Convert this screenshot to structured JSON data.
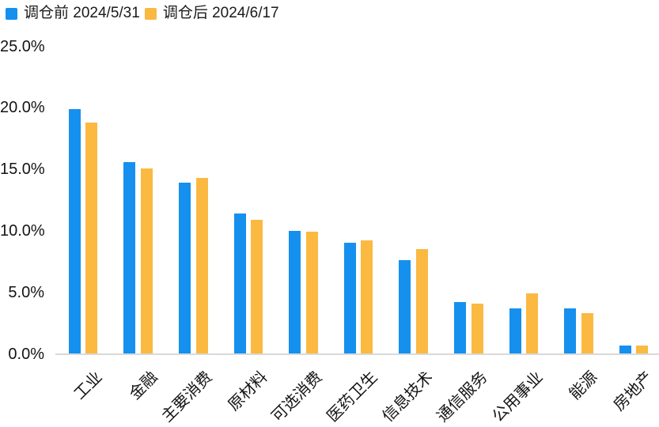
{
  "legend": {
    "items": [
      {
        "label": "调仓前 2024/5/31",
        "color": "#1590EE",
        "icon": "square-swatch-blue"
      },
      {
        "label": "调仓后 2024/6/17",
        "color": "#FBB942",
        "icon": "square-swatch-orange"
      }
    ]
  },
  "chart_data": {
    "type": "bar",
    "title": "",
    "categories": [
      "工业",
      "金融",
      "主要消费",
      "原材料",
      "可选消费",
      "医药卫生",
      "信息技术",
      "通信服务",
      "公用事业",
      "能源",
      "房地产"
    ],
    "series": [
      {
        "name": "调仓前 2024/5/31",
        "color": "#1590EE",
        "values": [
          19.9,
          15.6,
          13.9,
          11.4,
          10.0,
          9.0,
          7.6,
          4.2,
          3.7,
          3.7,
          0.7
        ]
      },
      {
        "name": "调仓后 2024/6/17",
        "color": "#FBB942",
        "values": [
          18.8,
          15.1,
          14.3,
          10.9,
          9.9,
          9.2,
          8.5,
          4.1,
          4.9,
          3.3,
          0.7
        ]
      }
    ],
    "xlabel": "",
    "ylabel": "",
    "ylim": [
      0,
      25
    ],
    "ytick_step": 5,
    "ytick_labels": [
      "0.0%",
      "5.0%",
      "10.0%",
      "15.0%",
      "20.0%",
      "25.0%"
    ],
    "grid": false,
    "legend_position": "top-left",
    "axis_line_color": "#D9D9D9",
    "text_color": "#141414",
    "background_color": "#FFFFFF"
  }
}
